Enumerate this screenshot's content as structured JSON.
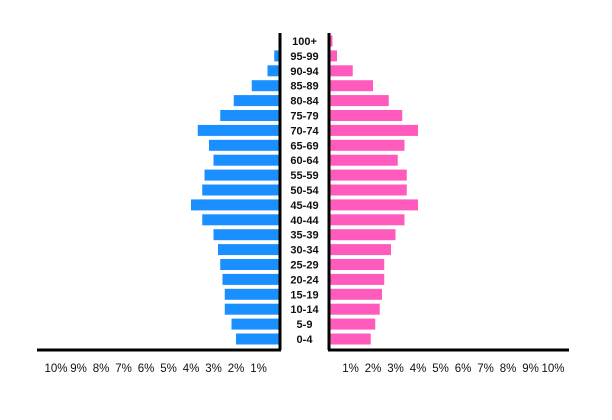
{
  "chart_data": {
    "type": "bar",
    "orientation": "horizontal",
    "layout": "population-pyramid",
    "categories": [
      "0-4",
      "5-9",
      "10-14",
      "15-19",
      "20-24",
      "25-29",
      "30-34",
      "35-39",
      "40-44",
      "45-49",
      "50-54",
      "55-59",
      "60-64",
      "65-69",
      "70-74",
      "75-79",
      "80-84",
      "85-89",
      "90-94",
      "95-99",
      "100+"
    ],
    "series": [
      {
        "side": "left",
        "color": "#1a8fff",
        "values": [
          2.0,
          2.2,
          2.5,
          2.5,
          2.6,
          2.7,
          2.8,
          3.0,
          3.5,
          4.0,
          3.5,
          3.4,
          3.0,
          3.2,
          3.7,
          2.7,
          2.1,
          1.3,
          0.6,
          0.3,
          0.1
        ]
      },
      {
        "side": "right",
        "color": "#ff5bbd",
        "values": [
          1.9,
          2.1,
          2.3,
          2.4,
          2.5,
          2.5,
          2.8,
          3.0,
          3.4,
          4.0,
          3.5,
          3.5,
          3.1,
          3.4,
          4.0,
          3.3,
          2.7,
          2.0,
          1.1,
          0.4,
          0.2
        ]
      }
    ],
    "xlim": [
      0,
      10
    ],
    "left_ticks": [
      "10%",
      "9%",
      "8%",
      "7%",
      "6%",
      "5%",
      "4%",
      "3%",
      "2%",
      "1%"
    ],
    "right_ticks": [
      "1%",
      "2%",
      "3%",
      "4%",
      "5%",
      "6%",
      "7%",
      "8%",
      "9%",
      "10%"
    ],
    "title": "",
    "xlabel": "",
    "ylabel": "",
    "grid": false,
    "legend": "none"
  }
}
